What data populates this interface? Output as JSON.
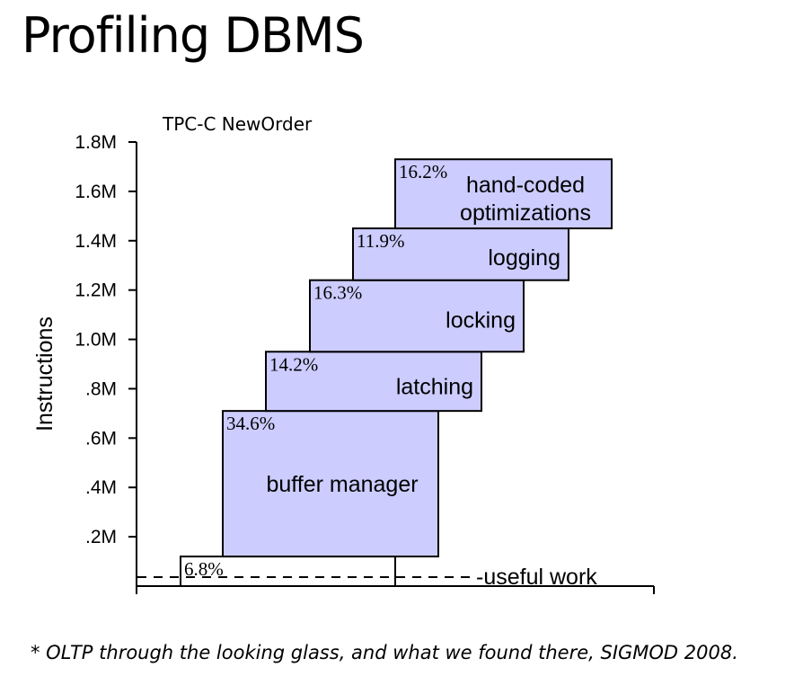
{
  "slide": {
    "title": "Profiling DBMS",
    "footnote": "* OLTP through the looking glass, and what we found there, SIGMOD 2008."
  },
  "chart_data": {
    "type": "bar",
    "title": "TPC-C NewOrder",
    "ylabel": "Instructions",
    "xlabel": "",
    "ylim": [
      0,
      1800000
    ],
    "yticks": [
      {
        "value": 200000,
        "label": ".2M"
      },
      {
        "value": 400000,
        "label": ".4M"
      },
      {
        "value": 600000,
        "label": ".6M"
      },
      {
        "value": 800000,
        "label": ".8M"
      },
      {
        "value": 1000000,
        "label": "1.0M"
      },
      {
        "value": 1200000,
        "label": "1.2M"
      },
      {
        "value": 1400000,
        "label": "1.4M"
      },
      {
        "value": 1600000,
        "label": "1.6M"
      },
      {
        "value": 1800000,
        "label": "1.8M"
      }
    ],
    "grid": false,
    "segments": [
      {
        "name": "",
        "percent": "6.8%",
        "start": 0,
        "end": 120000,
        "fill": "#ffffff"
      },
      {
        "name": "buffer manager",
        "percent": "34.6%",
        "start": 120000,
        "end": 710000,
        "fill": "#ccccff"
      },
      {
        "name": "latching",
        "percent": "14.2%",
        "start": 710000,
        "end": 950000,
        "fill": "#ccccff"
      },
      {
        "name": "locking",
        "percent": "16.3%",
        "start": 950000,
        "end": 1240000,
        "fill": "#ccccff"
      },
      {
        "name": "logging",
        "percent": "11.9%",
        "start": 1240000,
        "end": 1450000,
        "fill": "#ccccff"
      },
      {
        "name": "hand-coded optimizations",
        "percent": "16.2%",
        "start": 1450000,
        "end": 1730000,
        "fill": "#ccccff"
      }
    ],
    "reference_line": {
      "value": 40000,
      "label": "-useful work",
      "style": "dashed"
    }
  }
}
